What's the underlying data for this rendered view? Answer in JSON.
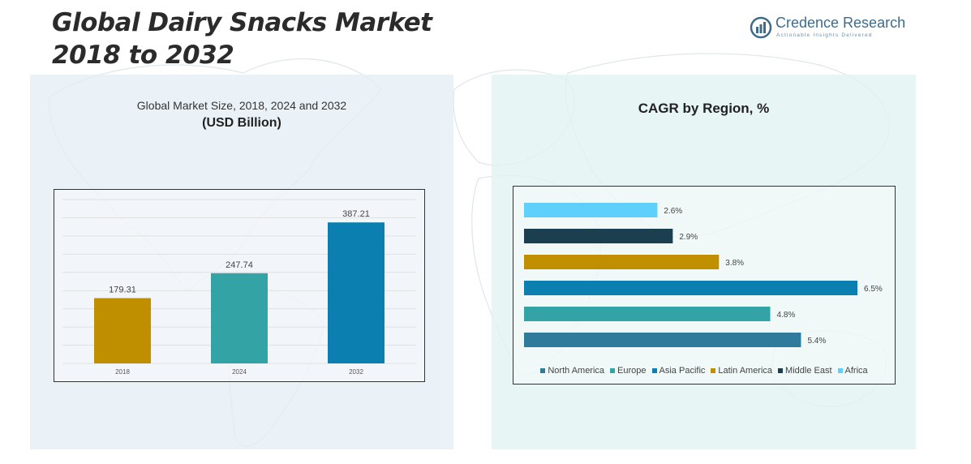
{
  "header": {
    "title_line1": "Global Dairy Snacks Market",
    "title_line2": "2018 to 2032"
  },
  "brand": {
    "name": "Credence Research",
    "tagline": "Actionable Insights Delivered",
    "color": "#3e6b8a"
  },
  "left_panel": {
    "subtitle": "Global Market Size, 2018, 2024 and 2032",
    "unit": "(USD Billion)"
  },
  "right_panel": {
    "title": "CAGR by Region, %"
  },
  "chart_data": [
    {
      "type": "bar",
      "title": "Global Market Size, 2018, 2024 and 2032",
      "subtitle": "(USD Billion)",
      "categories": [
        "2018",
        "2024",
        "2032"
      ],
      "values": [
        179.31,
        247.74,
        387.21
      ],
      "value_labels": [
        "179.31",
        "247.74",
        "387.21"
      ],
      "colors": [
        "#bf8f00",
        "#33a3a6",
        "#0a7fb0"
      ],
      "ylim": [
        0,
        450
      ],
      "grid": true,
      "xlabel": "",
      "ylabel": ""
    },
    {
      "type": "bar",
      "orientation": "horizontal",
      "title": "CAGR by Region, %",
      "categories": [
        "Africa",
        "Middle East",
        "Latin America",
        "Asia Pacific",
        "Europe",
        "North America"
      ],
      "values": [
        2.6,
        2.9,
        3.8,
        6.5,
        4.8,
        5.4
      ],
      "value_labels": [
        "2.6%",
        "2.9%",
        "3.8%",
        "6.5%",
        "4.8%",
        "5.4%"
      ],
      "colors": [
        "#5fd0fb",
        "#1c3f4f",
        "#bf8f00",
        "#0a7fb0",
        "#33a3a6",
        "#2e7b9c"
      ],
      "xlim": [
        0,
        7
      ],
      "legend": {
        "placement": "bottom",
        "entries": [
          {
            "label": "North America",
            "color": "#2e7b9c"
          },
          {
            "label": "Europe",
            "color": "#33a3a6"
          },
          {
            "label": "Asia Pacific",
            "color": "#0a7fb0"
          },
          {
            "label": "Latin America",
            "color": "#bf8f00"
          },
          {
            "label": "Middle East",
            "color": "#1c3f4f"
          },
          {
            "label": "Africa",
            "color": "#5fd0fb"
          }
        ]
      }
    }
  ]
}
